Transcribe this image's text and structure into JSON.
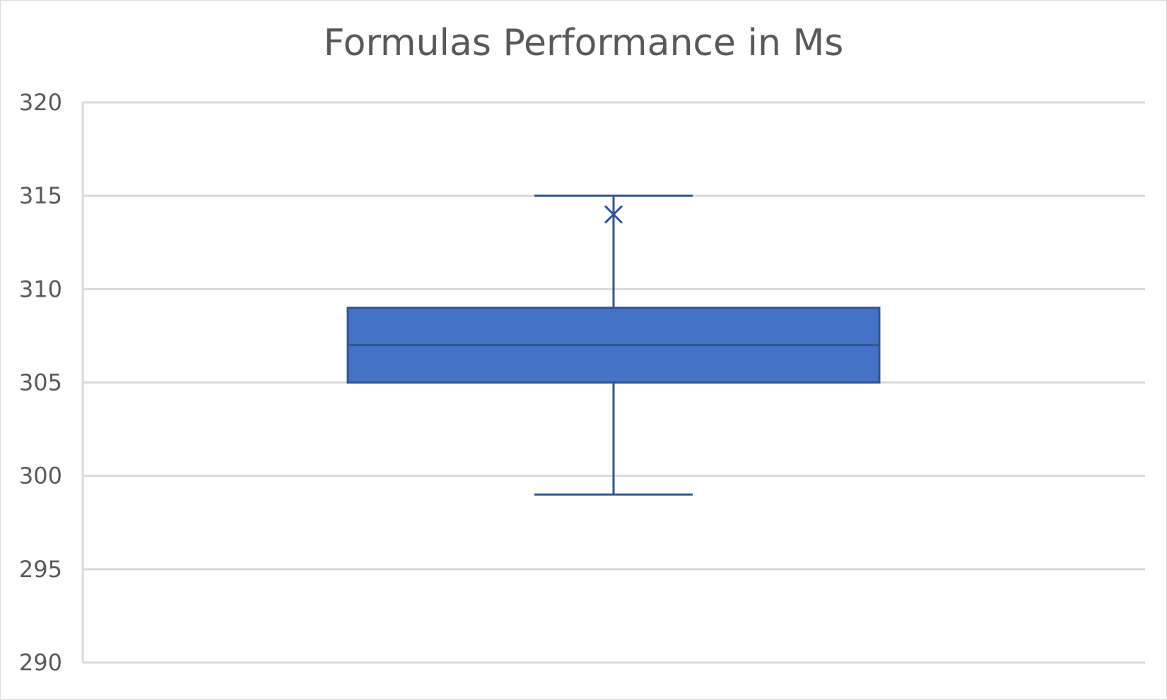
{
  "chart_data": {
    "type": "box",
    "title": "Formulas Performance in Ms",
    "xlabel": "",
    "ylabel": "",
    "ylim": [
      290,
      320
    ],
    "yticks": [
      "290",
      "295",
      "300",
      "305",
      "310",
      "315",
      "320"
    ],
    "grid": true,
    "legend": "none",
    "series": [
      {
        "min": 299,
        "q1": 305,
        "median": 307,
        "q3": 309,
        "max": 315,
        "mean": 314
      }
    ],
    "colors": {
      "box_fill": "#4472c4",
      "box_stroke": "#2f5597",
      "gridline": "#d9d9d9",
      "text": "#595959"
    }
  }
}
